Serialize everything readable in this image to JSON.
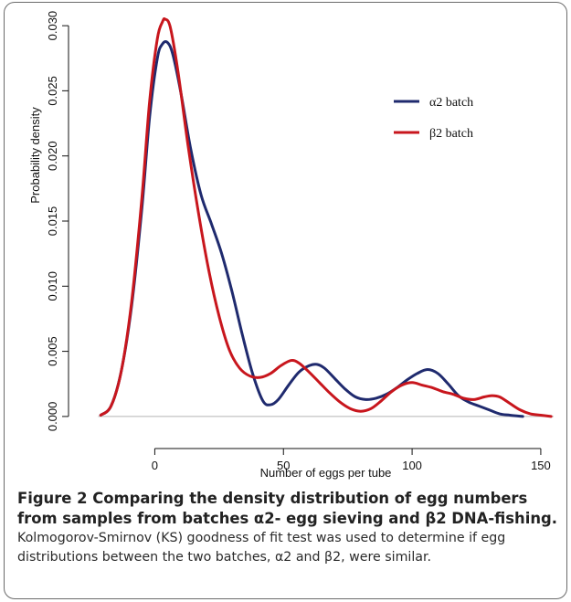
{
  "chart_data": {
    "type": "line",
    "xlabel": "Number of eggs per tube",
    "ylabel": "Probability density",
    "xlim": [
      -25,
      155
    ],
    "ylim": [
      -0.0012,
      0.0312
    ],
    "x_ticks": [
      0,
      50,
      100,
      150
    ],
    "x_tick_labels": [
      "0",
      "50",
      "100",
      "150"
    ],
    "y_ticks": [
      0,
      0.005,
      0.01,
      0.015,
      0.02,
      0.025,
      0.03
    ],
    "y_tick_labels": [
      "0.000",
      "0.005",
      "0.010",
      "0.015",
      "0.020",
      "0.025",
      "0.030"
    ],
    "baseline": 0,
    "legend_position": "top-right",
    "series": [
      {
        "name": "α2 batch",
        "color": "#1f2a6e",
        "points": [
          [
            -21,
            0.0001
          ],
          [
            -17,
            0.0008
          ],
          [
            -13,
            0.0035
          ],
          [
            -9,
            0.0085
          ],
          [
            -5,
            0.016
          ],
          [
            -2,
            0.023
          ],
          [
            1,
            0.0275
          ],
          [
            3,
            0.0286
          ],
          [
            5,
            0.0287
          ],
          [
            7,
            0.0278
          ],
          [
            10,
            0.025
          ],
          [
            14,
            0.0205
          ],
          [
            18,
            0.017
          ],
          [
            22,
            0.0148
          ],
          [
            26,
            0.0125
          ],
          [
            30,
            0.0096
          ],
          [
            34,
            0.0063
          ],
          [
            38,
            0.0033
          ],
          [
            42,
            0.0012
          ],
          [
            45,
            0.0009
          ],
          [
            48,
            0.0013
          ],
          [
            52,
            0.0024
          ],
          [
            56,
            0.0034
          ],
          [
            60,
            0.0039
          ],
          [
            63,
            0.004
          ],
          [
            66,
            0.0037
          ],
          [
            70,
            0.0029
          ],
          [
            74,
            0.0021
          ],
          [
            78,
            0.0015
          ],
          [
            82,
            0.0013
          ],
          [
            86,
            0.0014
          ],
          [
            90,
            0.0017
          ],
          [
            94,
            0.0022
          ],
          [
            98,
            0.0028
          ],
          [
            102,
            0.0033
          ],
          [
            106,
            0.0036
          ],
          [
            110,
            0.0033
          ],
          [
            114,
            0.0025
          ],
          [
            118,
            0.0016
          ],
          [
            122,
            0.0011
          ],
          [
            126,
            0.0008
          ],
          [
            130,
            0.0005
          ],
          [
            134,
            0.0002
          ],
          [
            138,
            0.0001
          ],
          [
            143,
            0.0
          ]
        ]
      },
      {
        "name": "β2 batch",
        "color": "#c8161d",
        "points": [
          [
            -21,
            0.0001
          ],
          [
            -17,
            0.0008
          ],
          [
            -13,
            0.0035
          ],
          [
            -9,
            0.0088
          ],
          [
            -5,
            0.0168
          ],
          [
            -2,
            0.0242
          ],
          [
            1,
            0.029
          ],
          [
            3,
            0.0303
          ],
          [
            4,
            0.0305
          ],
          [
            6,
            0.0299
          ],
          [
            9,
            0.0265
          ],
          [
            13,
            0.0207
          ],
          [
            17,
            0.0156
          ],
          [
            21,
            0.0112
          ],
          [
            25,
            0.0077
          ],
          [
            29,
            0.0051
          ],
          [
            33,
            0.0037
          ],
          [
            37,
            0.0031
          ],
          [
            41,
            0.003
          ],
          [
            45,
            0.0033
          ],
          [
            49,
            0.0039
          ],
          [
            53,
            0.0043
          ],
          [
            56,
            0.0041
          ],
          [
            60,
            0.0034
          ],
          [
            64,
            0.0026
          ],
          [
            68,
            0.0018
          ],
          [
            72,
            0.0011
          ],
          [
            76,
            0.0006
          ],
          [
            80,
            0.0004
          ],
          [
            84,
            0.0006
          ],
          [
            88,
            0.0012
          ],
          [
            92,
            0.0019
          ],
          [
            96,
            0.0024
          ],
          [
            100,
            0.0026
          ],
          [
            104,
            0.0024
          ],
          [
            108,
            0.0022
          ],
          [
            112,
            0.0019
          ],
          [
            116,
            0.0017
          ],
          [
            120,
            0.0014
          ],
          [
            124,
            0.0013
          ],
          [
            128,
            0.0015
          ],
          [
            131,
            0.0016
          ],
          [
            134,
            0.0015
          ],
          [
            138,
            0.001
          ],
          [
            142,
            0.0005
          ],
          [
            146,
            0.0002
          ],
          [
            150,
            0.0001
          ],
          [
            154,
            0.0
          ]
        ]
      }
    ]
  },
  "caption": {
    "title": "Figure 2 Comparing the density distribution of egg numbers from samples from batches α2- egg sieving and β2 DNA-fishing.",
    "body": "Kolmogorov-Smirnov (KS) goodness of fit test was used to determine if egg distributions between the two batches, α2 and β2, were similar."
  }
}
